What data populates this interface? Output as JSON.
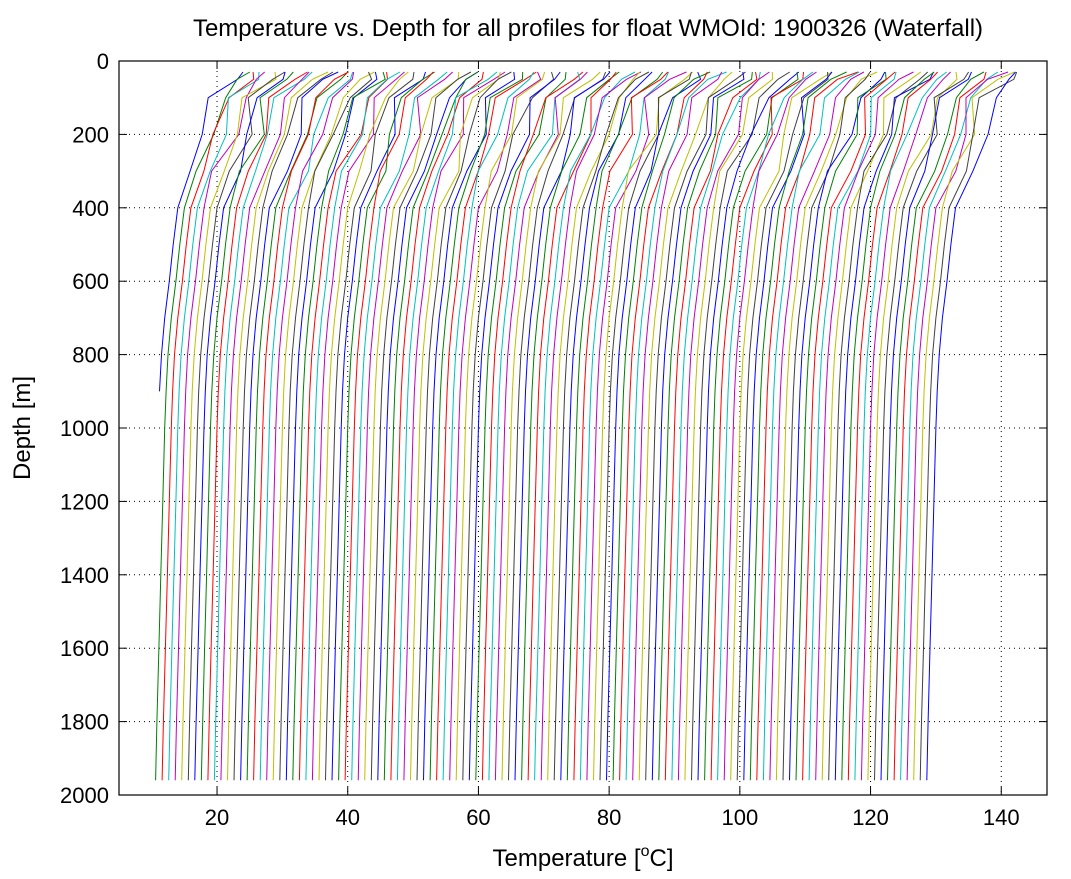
{
  "chart_data": {
    "type": "line",
    "title": "Temperature vs. Depth for all profiles for float WMOId: 1900326 (Waterfall)",
    "xlabel_prefix": "Temperature [",
    "xlabel_sup": "o",
    "xlabel_suffix": "C]",
    "ylabel": "Depth [m]",
    "xlim": [
      5,
      147
    ],
    "ylim": [
      0,
      2000
    ],
    "y_reversed": true,
    "grid": "dotted",
    "legend": "none",
    "xticks": [
      20,
      40,
      60,
      80,
      100,
      120,
      140
    ],
    "xtick_labels": [
      "20",
      "40",
      "60",
      "80",
      "100",
      "120",
      "140"
    ],
    "yticks": [
      0,
      200,
      400,
      600,
      800,
      1000,
      1200,
      1400,
      1600,
      1800,
      2000
    ],
    "ytick_labels": [
      "0",
      "200",
      "400",
      "600",
      "800",
      "1000",
      "1200",
      "1400",
      "1600",
      "1800",
      "2000"
    ],
    "series_colors": [
      "#0000ff",
      "#008000",
      "#ff0000",
      "#00bfbf",
      "#bf00bf",
      "#bfbf00",
      "#404040"
    ],
    "profile_count": 120,
    "profile_offset_step": 1,
    "profile_max_depth": 1960,
    "first_profile_max_depth": 980,
    "base_profile": {
      "depth": [
        0,
        50,
        100,
        200,
        300,
        400,
        500,
        600,
        700,
        800,
        900,
        1000,
        1200,
        1400,
        1600,
        1800,
        1960
      ],
      "temperature": [
        24.0,
        23.0,
        19.5,
        18.3,
        16.0,
        14.0,
        13.3,
        12.7,
        12.0,
        11.5,
        11.2,
        11.0,
        10.7,
        10.4,
        10.1,
        9.8,
        9.6
      ]
    },
    "profile_surface_offsets_note": "Each profile n is drawn at base temperature + n x profile_offset_step."
  }
}
